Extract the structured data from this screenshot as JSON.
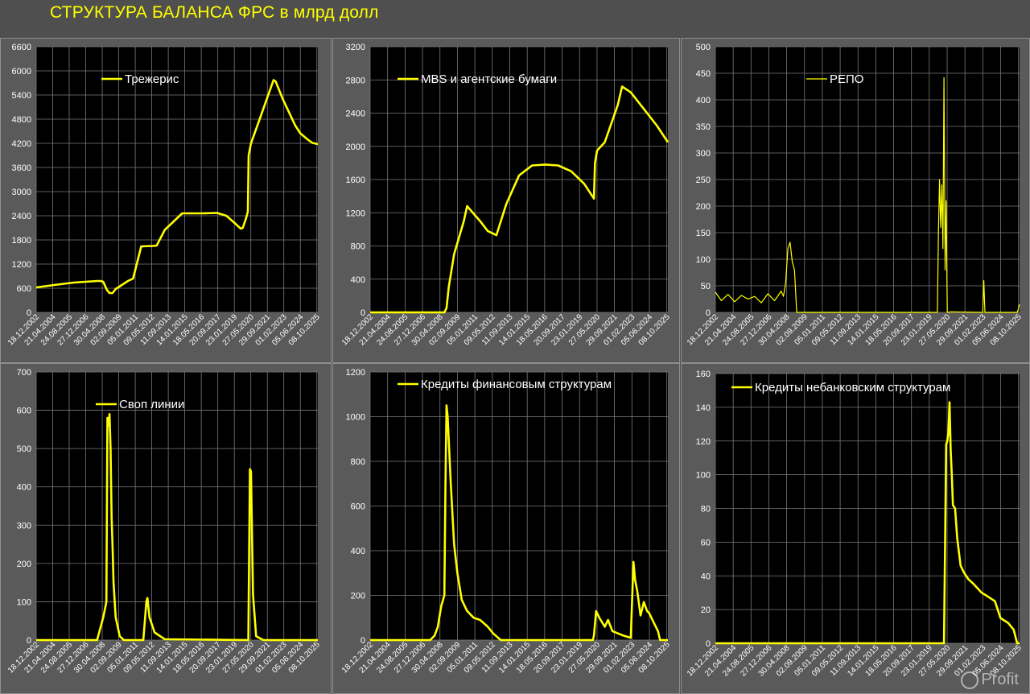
{
  "page": {
    "title": "СТРУКТУРА БАЛАНСА ФРС в млрд долл",
    "watermark": "Profit"
  },
  "date_ticks": [
    "18.12.2002",
    "21.04.2004",
    "24.08.2005",
    "27.12.2006",
    "30.04.2008",
    "02.09.2009",
    "05.01.2011",
    "09.05.2012",
    "11.09.2013",
    "14.01.2015",
    "18.05.2016",
    "20.09.2017",
    "23.01.2019",
    "27.05.2020",
    "29.09.2021",
    "01.02.2023",
    "05.06.2024",
    "08.10.2025"
  ],
  "colors": {
    "line": "#ffff00",
    "plot_bg": "#000000",
    "grid": "#7a7a7a",
    "panel_bg": "#5a5a5a"
  },
  "chart_data": [
    {
      "type": "line",
      "legend": "Трежерис",
      "legend_style": "thick",
      "ylim": [
        0,
        6600
      ],
      "yticks": [
        0,
        600,
        1200,
        1800,
        2400,
        3000,
        3600,
        4200,
        4800,
        5400,
        6000,
        6600
      ],
      "x": [
        "2002-12-18",
        "2004-06-01",
        "2006-01-01",
        "2007-12-01",
        "2008-03-01",
        "2008-06-01",
        "2008-09-15",
        "2008-12-01",
        "2009-03-01",
        "2009-06-01",
        "2010-06-01",
        "2010-11-01",
        "2011-06-30",
        "2012-06-01",
        "2012-10-01",
        "2013-06-01",
        "2014-10-29",
        "2016-06-01",
        "2017-09-01",
        "2018-06-01",
        "2019-03-01",
        "2019-08-01",
        "2019-10-01",
        "2020-01-01",
        "2020-03-01",
        "2020-03-25",
        "2020-06-01",
        "2021-01-01",
        "2022-04-01",
        "2022-06-01",
        "2023-01-01",
        "2024-01-01",
        "2024-06-01",
        "2025-01-01",
        "2025-06-01",
        "2026-01-01"
      ],
      "values": [
        620,
        680,
        740,
        780,
        780,
        760,
        560,
        480,
        480,
        580,
        780,
        840,
        1640,
        1650,
        1660,
        2050,
        2460,
        2460,
        2470,
        2400,
        2200,
        2080,
        2100,
        2320,
        2500,
        3900,
        4200,
        4700,
        5770,
        5740,
        5300,
        4650,
        4450,
        4300,
        4210,
        4180
      ]
    },
    {
      "type": "line",
      "legend": "MBS и агентские бумаги",
      "legend_style": "thick",
      "ylim": [
        0,
        3200
      ],
      "yticks": [
        0,
        400,
        800,
        1200,
        1600,
        2000,
        2400,
        2800,
        3200
      ],
      "x": [
        "2002-12-18",
        "2008-09-01",
        "2008-11-01",
        "2009-01-01",
        "2009-06-01",
        "2010-03-01",
        "2010-06-01",
        "2011-06-01",
        "2012-01-01",
        "2012-09-01",
        "2013-06-01",
        "2014-06-01",
        "2015-06-01",
        "2016-06-01",
        "2017-06-01",
        "2018-06-01",
        "2019-06-01",
        "2020-03-01",
        "2020-04-01",
        "2020-06-01",
        "2021-01-01",
        "2022-01-01",
        "2022-05-01",
        "2023-01-01",
        "2024-01-01",
        "2025-01-01",
        "2026-01-01"
      ],
      "values": [
        0,
        0,
        50,
        300,
        700,
        1100,
        1280,
        1100,
        980,
        930,
        1300,
        1650,
        1770,
        1780,
        1770,
        1700,
        1550,
        1370,
        1800,
        1950,
        2050,
        2500,
        2720,
        2650,
        2450,
        2250,
        2050
      ]
    },
    {
      "type": "line",
      "legend": "РЕПО",
      "legend_style": "thin",
      "ylim": [
        0,
        500
      ],
      "yticks": [
        0,
        50,
        100,
        150,
        200,
        250,
        300,
        350,
        400,
        450,
        500
      ],
      "x": [
        "2002-12-18",
        "2003-06-01",
        "2003-12-01",
        "2004-06-01",
        "2004-12-01",
        "2005-06-01",
        "2005-12-01",
        "2006-06-01",
        "2006-12-01",
        "2007-06-01",
        "2007-12-01",
        "2008-02-01",
        "2008-04-01",
        "2008-06-01",
        "2008-08-01",
        "2008-10-01",
        "2008-12-01",
        "2009-01-01",
        "2009-02-01",
        "2019-09-01",
        "2019-10-01",
        "2019-11-01",
        "2019-12-01",
        "2020-01-01",
        "2020-02-01",
        "2020-03-01",
        "2020-04-01",
        "2020-05-01",
        "2020-06-01",
        "2020-07-01",
        "2020-09-01",
        "2023-01-01",
        "2023-02-01",
        "2023-03-01",
        "2023-04-01",
        "2025-09-01",
        "2025-10-01",
        "2025-11-01"
      ],
      "values": [
        38,
        22,
        34,
        20,
        32,
        25,
        30,
        18,
        35,
        22,
        40,
        30,
        55,
        120,
        132,
        95,
        80,
        40,
        0,
        0,
        150,
        250,
        160,
        240,
        120,
        442,
        80,
        210,
        0,
        0,
        1,
        0,
        0,
        60,
        0,
        0,
        5,
        15
      ]
    },
    {
      "type": "line",
      "legend": "Своп линии",
      "legend_style": "thick",
      "ylim": [
        0,
        700
      ],
      "yticks": [
        0,
        100,
        200,
        300,
        400,
        500,
        600,
        700
      ],
      "x": [
        "2002-12-18",
        "2007-12-01",
        "2008-03-01",
        "2008-06-01",
        "2008-09-01",
        "2008-10-01",
        "2008-11-01",
        "2008-12-01",
        "2009-01-01",
        "2009-02-01",
        "2009-03-01",
        "2009-04-01",
        "2009-06-01",
        "2009-10-01",
        "2010-02-01",
        "2011-09-01",
        "2011-12-01",
        "2012-01-01",
        "2012-03-01",
        "2012-08-01",
        "2013-06-01",
        "2020-02-01",
        "2020-03-15",
        "2020-05-01",
        "2020-06-01",
        "2020-08-01",
        "2020-11-01",
        "2021-06-01",
        "2026-01-01"
      ],
      "values": [
        0,
        0,
        30,
        60,
        100,
        580,
        560,
        590,
        500,
        320,
        250,
        150,
        60,
        10,
        0,
        0,
        100,
        110,
        60,
        20,
        2,
        0,
        0,
        446,
        440,
        120,
        10,
        0,
        0
      ]
    },
    {
      "type": "line",
      "legend": "Кредиты финансовым структурам",
      "legend_style": "thick",
      "ylim": [
        0,
        1200
      ],
      "yticks": [
        0,
        200,
        400,
        600,
        800,
        1000,
        1200
      ],
      "x": [
        "2002-12-18",
        "2007-08-01",
        "2007-12-01",
        "2008-03-01",
        "2008-06-01",
        "2008-09-01",
        "2008-10-01",
        "2008-11-01",
        "2008-12-01",
        "2009-01-01",
        "2009-03-01",
        "2009-06-01",
        "2009-09-01",
        "2010-01-01",
        "2010-06-01",
        "2010-12-01",
        "2011-06-01",
        "2012-01-01",
        "2012-06-01",
        "2013-01-01",
        "2020-02-01",
        "2020-03-01",
        "2020-05-01",
        "2020-08-01",
        "2021-01-01",
        "2021-04-01",
        "2021-08-01",
        "2022-06-01",
        "2023-01-01",
        "2023-03-15",
        "2023-05-01",
        "2023-07-01",
        "2023-10-01",
        "2024-01-01",
        "2024-04-01",
        "2024-06-01",
        "2024-10-01",
        "2025-02-01",
        "2025-04-01",
        "2025-09-01",
        "2026-01-01"
      ],
      "values": [
        0,
        0,
        20,
        60,
        150,
        200,
        700,
        1050,
        1000,
        900,
        700,
        430,
        300,
        180,
        130,
        100,
        90,
        60,
        30,
        0,
        0,
        20,
        130,
        100,
        60,
        90,
        40,
        20,
        10,
        350,
        270,
        220,
        110,
        170,
        130,
        120,
        80,
        40,
        0,
        0,
        0
      ]
    },
    {
      "type": "line",
      "legend": "Кредиты небанковским структурам",
      "legend_style": "thick",
      "ylim": [
        0,
        160
      ],
      "yticks": [
        0,
        20,
        40,
        60,
        80,
        100,
        120,
        140,
        160
      ],
      "x": [
        "2002-12-18",
        "2020-03-01",
        "2020-04-01",
        "2020-05-01",
        "2020-06-01",
        "2020-07-01",
        "2020-08-01",
        "2020-09-01",
        "2020-10-01",
        "2020-11-01",
        "2021-01-01",
        "2021-03-01",
        "2021-06-01",
        "2021-09-01",
        "2022-01-01",
        "2022-06-01",
        "2023-01-01",
        "2023-06-01",
        "2024-01-01",
        "2024-06-01",
        "2025-01-01",
        "2025-06-01",
        "2025-09-01",
        "2026-01-01"
      ],
      "values": [
        0,
        0,
        60,
        118,
        120,
        125,
        143,
        115,
        100,
        82,
        80,
        62,
        46,
        42,
        38,
        35,
        30,
        28,
        25,
        15,
        12,
        8,
        0,
        0
      ]
    }
  ]
}
